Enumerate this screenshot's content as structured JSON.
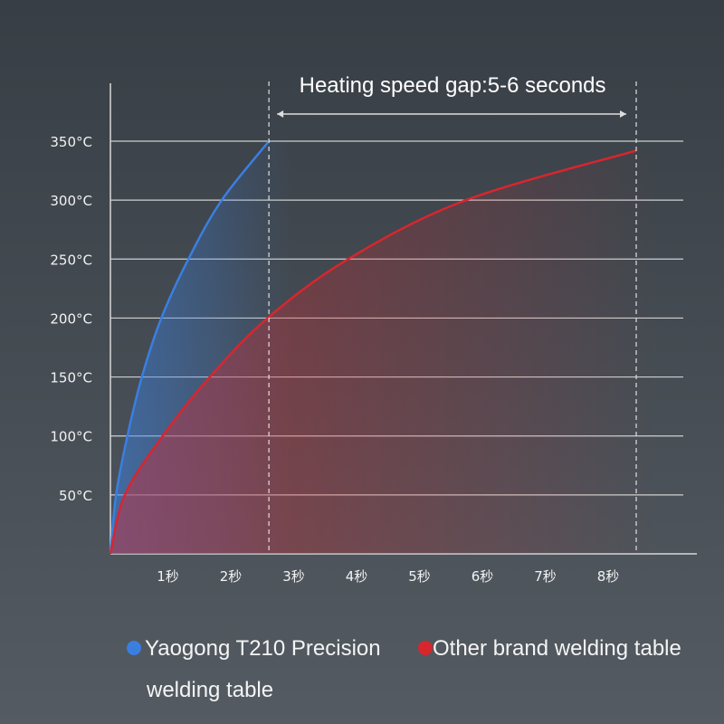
{
  "chart_data": {
    "type": "line",
    "title": "Heating speed gap:5-6 seconds",
    "xlabel": "",
    "ylabel": "",
    "x_ticks": [
      "1秒",
      "2秒",
      "3秒",
      "4秒",
      "5秒",
      "6秒",
      "7秒",
      "8秒"
    ],
    "y_ticks": [
      "50°C",
      "100°C",
      "150°C",
      "200°C",
      "250°C",
      "300°C",
      "350°C"
    ],
    "y_tick_values": [
      50,
      100,
      150,
      200,
      250,
      300,
      350
    ],
    "xlim": [
      0,
      9.2
    ],
    "ylim": [
      0,
      350
    ],
    "grid": true,
    "markers_seconds": [
      2.52,
      8.36
    ],
    "series": [
      {
        "name": "Yaogong T210 Precision welding table",
        "color": "#3a7fe0",
        "x": [
          0,
          0.09,
          0.27,
          0.5,
          0.81,
          1.24,
          1.77,
          2.52
        ],
        "y": [
          0,
          50,
          100,
          150,
          200,
          250,
          300,
          350
        ]
      },
      {
        "name": "Other brand welding table",
        "color": "#d8262e",
        "x": [
          0,
          0.23,
          0.83,
          1.58,
          2.5,
          3.78,
          5.65,
          8.36
        ],
        "y": [
          0,
          50,
          100,
          150,
          200,
          250,
          300,
          342
        ]
      }
    ]
  },
  "legend": {
    "items": [
      {
        "line1": "Yaogong T210 Precision",
        "line2": "welding table",
        "color": "#3a7fe0"
      },
      {
        "line1": "Other brand welding table",
        "color": "#d8262e"
      }
    ]
  }
}
